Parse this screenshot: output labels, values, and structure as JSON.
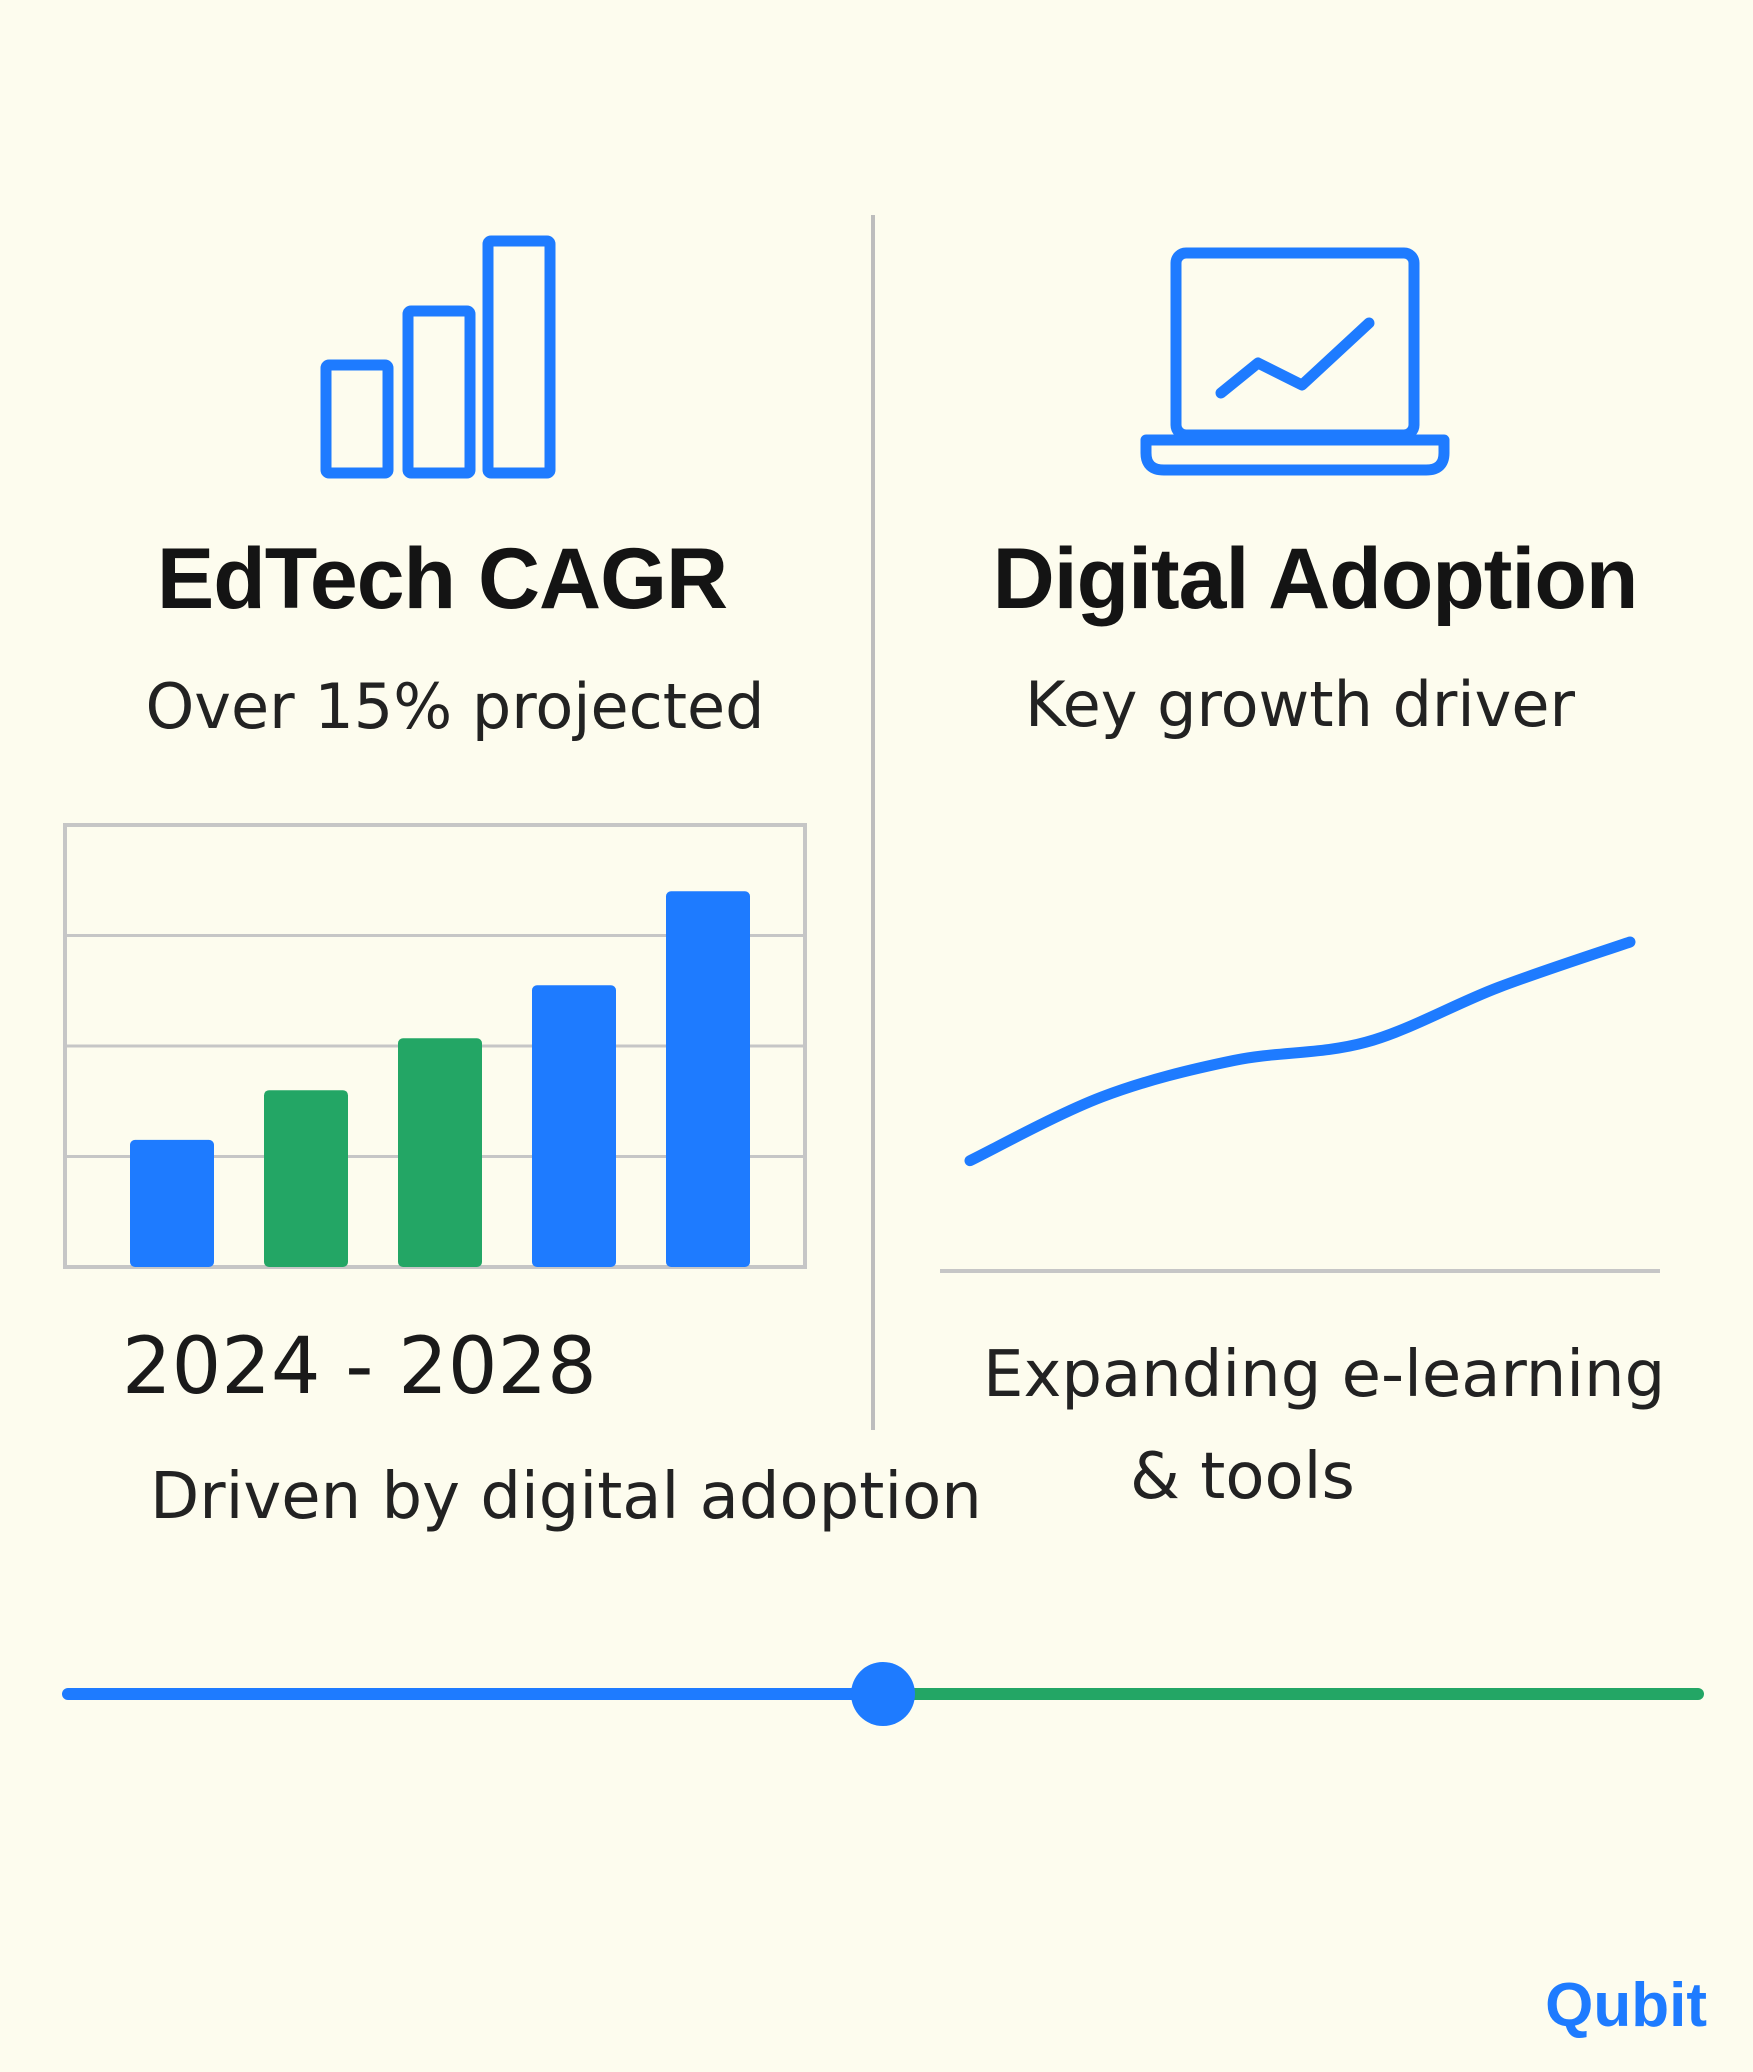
{
  "colors": {
    "background": "#FDFCEE",
    "accent_blue": "#1E7BFF",
    "accent_green": "#23A665",
    "divider": "#BDBDBD",
    "text": "#141414"
  },
  "left_panel": {
    "icon": "bar-chart-icon",
    "title": "EdTech CAGR",
    "subtitle": "Over  15% projected",
    "year_range": "2024 - 2028",
    "caption": "Driven by digital adoption"
  },
  "right_panel": {
    "icon": "laptop-trend-icon",
    "title": "Digital Adoption",
    "subtitle": "Key growth driver",
    "caption_line1": "Expanding e-learning",
    "caption_line2": "& tools"
  },
  "timeline": {
    "progress": 0.5,
    "left_color": "#1E7BFF",
    "right_color": "#23A665"
  },
  "brand": {
    "name": "Qubit",
    "color": "#1E7BFF"
  },
  "chart_data": [
    {
      "type": "bar",
      "categories": [
        "",
        "",
        "",
        "",
        ""
      ],
      "values": [
        1.15,
        1.6,
        2.07,
        2.55,
        3.4
      ],
      "colors": [
        "#1E7BFF",
        "#23A665",
        "#23A665",
        "#1E7BFF",
        "#1E7BFF"
      ],
      "title": "",
      "xlabel": "",
      "ylabel": "",
      "ylim": [
        0,
        4
      ],
      "grid": true
    },
    {
      "type": "line",
      "x": [
        0,
        1,
        2,
        3,
        4,
        5
      ],
      "y": [
        1.2,
        1.9,
        2.3,
        2.5,
        3.1,
        3.6
      ],
      "title": "",
      "xlabel": "",
      "ylabel": "",
      "xlim": [
        0,
        5
      ],
      "ylim": [
        0,
        4.5
      ],
      "grid": false
    }
  ]
}
